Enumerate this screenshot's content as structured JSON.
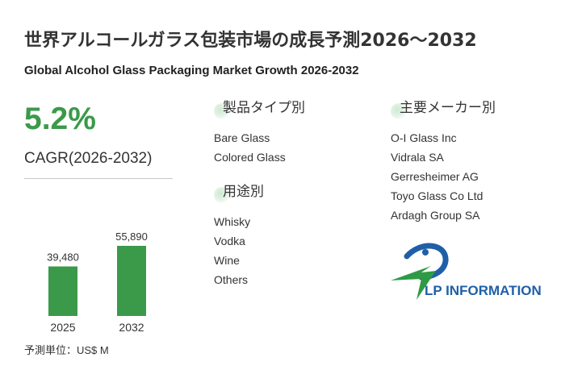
{
  "header": {
    "title_ja": "世界アルコールガラス包装市場の成長予測2026～2032",
    "title_en": "Global Alcohol Glass Packaging Market Growth 2026-2032"
  },
  "summary": {
    "cagr_value": "5.2%",
    "cagr_label": "CAGR(2026-2032)",
    "unit_note": "予測単位：US$ M"
  },
  "chart_data": {
    "type": "bar",
    "categories": [
      "2025",
      "2032"
    ],
    "values": [
      39480,
      55890
    ],
    "value_labels": [
      "39,480",
      "55,890"
    ],
    "title": "",
    "xlabel": "",
    "ylabel": "",
    "color": "#3a9a4a"
  },
  "sections": {
    "product_type": {
      "heading": "製品タイプ別",
      "items": [
        "Bare Glass",
        "Colored Glass"
      ]
    },
    "application": {
      "heading": "用途別",
      "items": [
        "Whisky",
        "Vodka",
        "Wine",
        "Others"
      ]
    },
    "manufacturers": {
      "heading": "主要メーカー別",
      "items": [
        "O-I Glass Inc",
        "Vidrala SA",
        "Gerresheimer AG",
        "Toyo Glass Co Ltd",
        "Ardagh Group SA"
      ]
    }
  },
  "logo": {
    "text": "LP INFORMATION",
    "colors": {
      "blue": "#1f5fa8",
      "green": "#2f9a45"
    }
  }
}
